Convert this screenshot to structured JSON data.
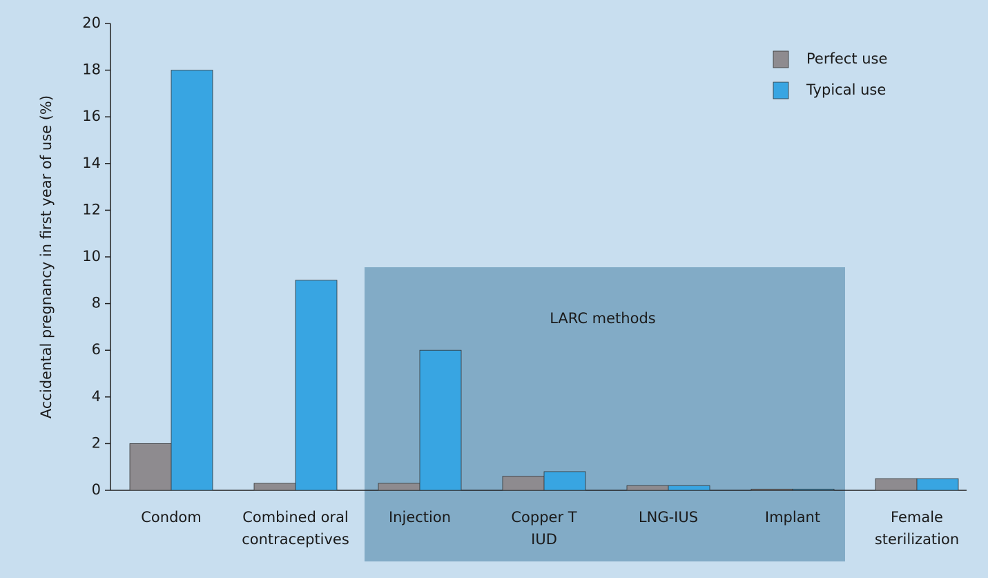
{
  "chart_data": {
    "type": "bar",
    "y_label": "Accidental pregnancy in first year of use (%)",
    "categories": [
      [
        "Condom"
      ],
      [
        "Combined oral",
        "contraceptives"
      ],
      [
        "Injection"
      ],
      [
        "Copper T",
        "IUD"
      ],
      [
        "LNG-IUS"
      ],
      [
        "Implant"
      ],
      [
        "Female",
        "sterilization"
      ]
    ],
    "series": [
      {
        "name": "Perfect use",
        "color": "#8e8b8f",
        "values": [
          2,
          0.3,
          0.3,
          0.6,
          0.2,
          0.05,
          0.5
        ]
      },
      {
        "name": "Typical use",
        "color": "#38a5e2",
        "values": [
          18,
          9,
          6,
          0.8,
          0.2,
          0.05,
          0.5
        ]
      }
    ],
    "ylim": [
      0,
      20
    ],
    "yticks": [
      0,
      2,
      4,
      6,
      8,
      10,
      12,
      14,
      16,
      18,
      20
    ],
    "annotation": "LARC methods",
    "legend": "top-right"
  }
}
